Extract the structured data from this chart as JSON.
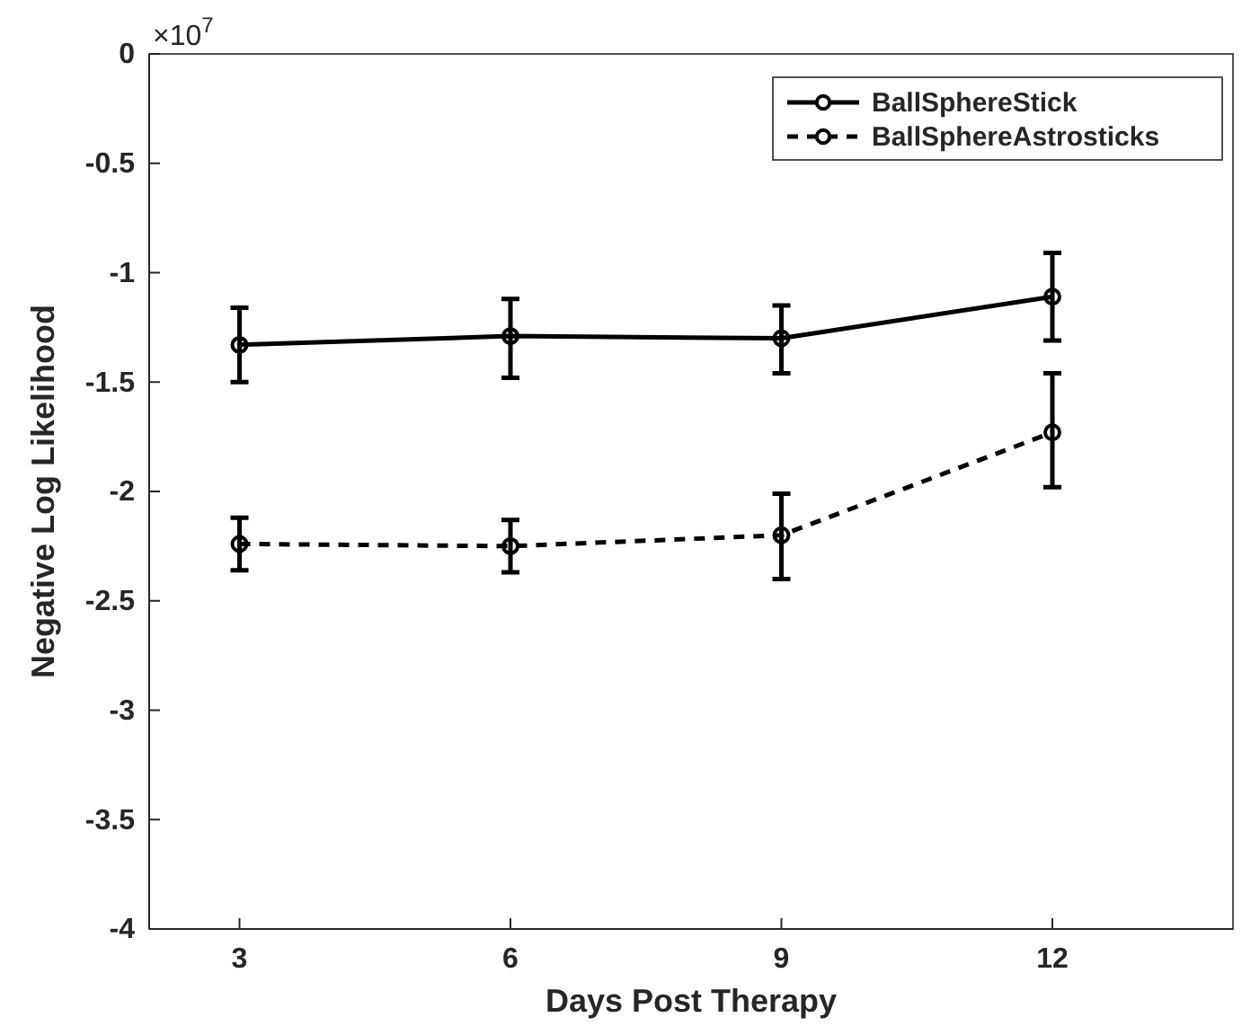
{
  "chart_data": {
    "type": "line",
    "xlabel": "Days Post Therapy",
    "ylabel": "Negative Log Likelihood",
    "annotations": [
      "×10$^{7}$"
    ],
    "x": [
      3,
      6,
      9,
      12
    ],
    "series": [
      {
        "name": "BallSphereStick",
        "color": "#000000",
        "line_style": "solid",
        "values": [
          -1.33,
          -1.29,
          -1.3,
          -1.11
        ],
        "errors": [
          [
            -1.5,
            -1.16
          ],
          [
            -1.48,
            -1.12
          ],
          [
            -1.46,
            -1.15
          ],
          [
            -1.31,
            -0.91
          ]
        ]
      },
      {
        "name": "BallSphereAstrosticks",
        "color": "#000000",
        "line_style": "dashed",
        "values": [
          -2.24,
          -2.25,
          -2.2,
          -1.73
        ],
        "errors": [
          [
            -2.36,
            -2.12
          ],
          [
            -2.37,
            -2.13
          ],
          [
            -2.4,
            -2.01
          ],
          [
            -1.98,
            -1.46
          ]
        ]
      }
    ],
    "marker": "circle",
    "legend": "top right",
    "grid": false,
    "xlim": [
      2,
      14
    ],
    "xticks": [
      3,
      6,
      9,
      12
    ],
    "ylim": [
      -4,
      0
    ],
    "yticks": [
      -4,
      -3.5,
      -3,
      -2.5,
      -2,
      -1.5,
      -1,
      -0.5,
      0
    ]
  }
}
